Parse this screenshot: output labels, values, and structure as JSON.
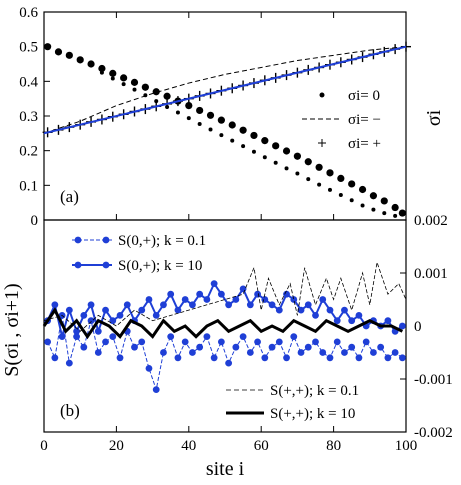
{
  "chart_data": [
    {
      "panel": "(a)",
      "type": "scatter",
      "xlabel": "site i",
      "ylabel": "σi",
      "xlim": [
        0,
        100
      ],
      "ylim": [
        0,
        0.6
      ],
      "yticks": [
        0,
        0.1,
        0.2,
        0.3,
        0.4,
        0.5,
        0.6
      ],
      "legend_position": "right",
      "legend": [
        "σi= 0",
        "σi= −",
        "σi= +"
      ],
      "series": [
        {
          "name": "σi= 0",
          "marker": "dot",
          "x": [
            1,
            4,
            7,
            10,
            13,
            16,
            19,
            22,
            25,
            28,
            31,
            34,
            37,
            40,
            43,
            46,
            49,
            52,
            55,
            58,
            61,
            64,
            67,
            70,
            73,
            76,
            79,
            82,
            85,
            88,
            91,
            94,
            97,
            99
          ],
          "y": [
            0.5,
            0.485,
            0.475,
            0.462,
            0.45,
            0.437,
            0.423,
            0.41,
            0.397,
            0.383,
            0.37,
            0.357,
            0.343,
            0.33,
            0.316,
            0.302,
            0.288,
            0.274,
            0.259,
            0.244,
            0.229,
            0.214,
            0.199,
            0.184,
            0.168,
            0.152,
            0.136,
            0.12,
            0.104,
            0.088,
            0.07,
            0.055,
            0.036,
            0.02
          ]
        },
        {
          "name": "σi= 0",
          "marker": "small-dot",
          "x": [
            16,
            19,
            22,
            25,
            28,
            31,
            34,
            37,
            40,
            43,
            46,
            49,
            52,
            55,
            58,
            61,
            64,
            67,
            70,
            73,
            76,
            79,
            82,
            85,
            88,
            91,
            94,
            97
          ],
          "y": [
            0.425,
            0.408,
            0.392,
            0.376,
            0.36,
            0.343,
            0.326,
            0.31,
            0.294,
            0.277,
            0.261,
            0.245,
            0.229,
            0.213,
            0.197,
            0.181,
            0.165,
            0.149,
            0.134,
            0.118,
            0.102,
            0.087,
            0.072,
            0.057,
            0.042,
            0.03,
            0.02,
            0.012
          ]
        },
        {
          "name": "σi= −",
          "marker": "dashed-line",
          "x": [
            0,
            10,
            20,
            30,
            40,
            50,
            60,
            70,
            80,
            90,
            100
          ],
          "y": [
            0.25,
            0.285,
            0.33,
            0.365,
            0.395,
            0.42,
            0.44,
            0.46,
            0.475,
            0.49,
            0.5
          ]
        },
        {
          "name": "σi= +",
          "marker": "plus",
          "x": [
            1,
            4,
            7,
            10,
            13,
            16,
            19,
            22,
            25,
            28,
            31,
            34,
            37,
            40,
            43,
            46,
            49,
            52,
            55,
            58,
            61,
            64,
            67,
            70,
            73,
            76,
            79,
            82,
            85,
            88,
            91,
            94,
            97,
            100
          ],
          "y": [
            0.253,
            0.26,
            0.268,
            0.275,
            0.283,
            0.29,
            0.298,
            0.305,
            0.313,
            0.32,
            0.328,
            0.335,
            0.343,
            0.35,
            0.358,
            0.365,
            0.373,
            0.38,
            0.388,
            0.395,
            0.403,
            0.41,
            0.418,
            0.425,
            0.433,
            0.44,
            0.448,
            0.455,
            0.463,
            0.47,
            0.478,
            0.485,
            0.493,
            0.5
          ]
        },
        {
          "name": "",
          "marker": "blue-line",
          "x": [
            0,
            100
          ],
          "y": [
            0.25,
            0.5
          ]
        }
      ]
    },
    {
      "panel": "(b)",
      "type": "line",
      "xlabel": "site i",
      "ylabel": "S(σi , σi+1)",
      "xlim": [
        0,
        100
      ],
      "ylim": [
        -0.002,
        0.002
      ],
      "xticks": [
        0,
        20,
        40,
        60,
        80,
        100
      ],
      "yticks": [
        -0.002,
        -0.001,
        0,
        0.001,
        0.002
      ],
      "ytick_labels": [
        "-0.002",
        "-0.001",
        "0",
        "0.001",
        "0.002"
      ],
      "legend_top": [
        "S(0,+); k = 0.1",
        "S(0,+); k = 10"
      ],
      "legend_bottom": [
        "S(+,+); k = 0.1",
        "S(+,+); k = 10"
      ],
      "series": [
        {
          "name": "S(0,+); k = 0.1",
          "style": "blue-dashed-dots",
          "x": [
            1,
            3,
            5,
            7,
            9,
            11,
            13,
            15,
            17,
            19,
            21,
            23,
            25,
            27,
            29,
            31,
            33,
            35,
            37,
            39,
            41,
            43,
            45,
            47,
            49,
            51,
            53,
            55,
            57,
            59,
            61,
            63,
            65,
            67,
            69,
            71,
            73,
            75,
            77,
            79,
            81,
            83,
            85,
            87,
            89,
            91,
            93,
            95,
            97,
            99
          ],
          "y": [
            -0.0003,
            -0.0006,
            0.0002,
            -0.0007,
            -0.0002,
            -0.0004,
            0.0001,
            -0.0005,
            -0.0003,
            -0.0002,
            -0.0006,
            -0.0001,
            -0.0004,
            -0.0003,
            -0.0008,
            -0.0012,
            -0.0005,
            -0.0002,
            -0.0006,
            -0.0003,
            -0.0005,
            -0.0004,
            -0.0002,
            -0.0006,
            -0.0003,
            -0.0007,
            -0.0004,
            -0.0002,
            -0.0005,
            -0.0003,
            -0.0006,
            -0.0004,
            -0.0003,
            -0.0006,
            -0.0002,
            -0.0005,
            -0.0004,
            -0.0003,
            -0.0005,
            -0.0006,
            -0.0003,
            -0.0005,
            -0.0004,
            -0.0006,
            -0.0003,
            -0.0005,
            -0.0004,
            -0.0006,
            -0.0005,
            -0.0006
          ]
        },
        {
          "name": "S(0,+); k = 10",
          "style": "blue-solid-dots",
          "x": [
            1,
            3,
            5,
            7,
            9,
            11,
            13,
            15,
            17,
            19,
            21,
            23,
            25,
            27,
            29,
            31,
            33,
            35,
            37,
            39,
            41,
            43,
            45,
            47,
            49,
            51,
            53,
            55,
            57,
            59,
            61,
            63,
            65,
            67,
            69,
            71,
            73,
            75,
            77,
            79,
            81,
            83,
            85,
            87,
            89,
            91,
            93,
            95,
            97,
            99
          ],
          "y": [
            0.0001,
            0.0004,
            -0.0002,
            0.0003,
            -0.0001,
            0.0002,
            0.0004,
            -0.0001,
            0.0003,
            0.0001,
            0.0002,
            0.0004,
            0.0001,
            0.0003,
            0.0005,
            0.0002,
            0.0004,
            0.0006,
            0.0003,
            0.0005,
            0.0004,
            0.0006,
            0.0005,
            0.0008,
            0.0006,
            0.0004,
            0.0005,
            0.0007,
            0.0004,
            0.0006,
            0.0005,
            0.0004,
            0.0003,
            0.0006,
            0.0005,
            0.0003,
            0.0004,
            0.0002,
            0.0005,
            0.0003,
            0.0001,
            0.0003,
            0.0001,
            0.0002,
            0.0,
            0.0001,
            0.0,
            0.0001,
            -0.0001,
            0.0
          ]
        },
        {
          "name": "S(+,+); k = 0.1",
          "style": "black-thin-dashed",
          "x": [
            0,
            5,
            10,
            15,
            20,
            25,
            30,
            35,
            40,
            45,
            50,
            55,
            58,
            60,
            62,
            65,
            68,
            70,
            72,
            75,
            78,
            80,
            82,
            85,
            88,
            90,
            92,
            95,
            98,
            100
          ],
          "y": [
            0.0001,
            0.0002,
            -0.0001,
            0.0002,
            0.0,
            0.0003,
            0.0001,
            0.0002,
            0.0003,
            0.0004,
            0.0005,
            0.0006,
            0.0011,
            0.0003,
            0.0009,
            0.0004,
            0.0008,
            0.0002,
            0.0011,
            0.0004,
            0.0009,
            0.0005,
            0.0009,
            0.0003,
            0.001,
            0.0004,
            0.0012,
            0.0006,
            0.0008,
            0.0005
          ]
        },
        {
          "name": "S(+,+); k = 10",
          "style": "black-thick-solid",
          "x": [
            0,
            3,
            6,
            9,
            12,
            15,
            18,
            21,
            24,
            27,
            30,
            33,
            36,
            39,
            42,
            45,
            48,
            51,
            54,
            57,
            60,
            63,
            66,
            69,
            72,
            75,
            78,
            81,
            84,
            87,
            90,
            93,
            96,
            99
          ],
          "y": [
            0.0,
            0.0003,
            -0.0001,
            0.0001,
            -0.0002,
            0.0001,
            0.0,
            -0.0002,
            0.0001,
            0.0,
            -0.0002,
            0.0001,
            -0.0001,
            0.0,
            -0.0002,
            0.0,
            0.0001,
            -0.0001,
            0.0,
            0.0001,
            -0.0001,
            0.0,
            -0.0001,
            0.0001,
            0.0,
            -0.0001,
            0.0001,
            0.0,
            -0.0001,
            0.0,
            0.0001,
            0.0,
            0.0,
            -0.0001
          ]
        }
      ]
    }
  ]
}
